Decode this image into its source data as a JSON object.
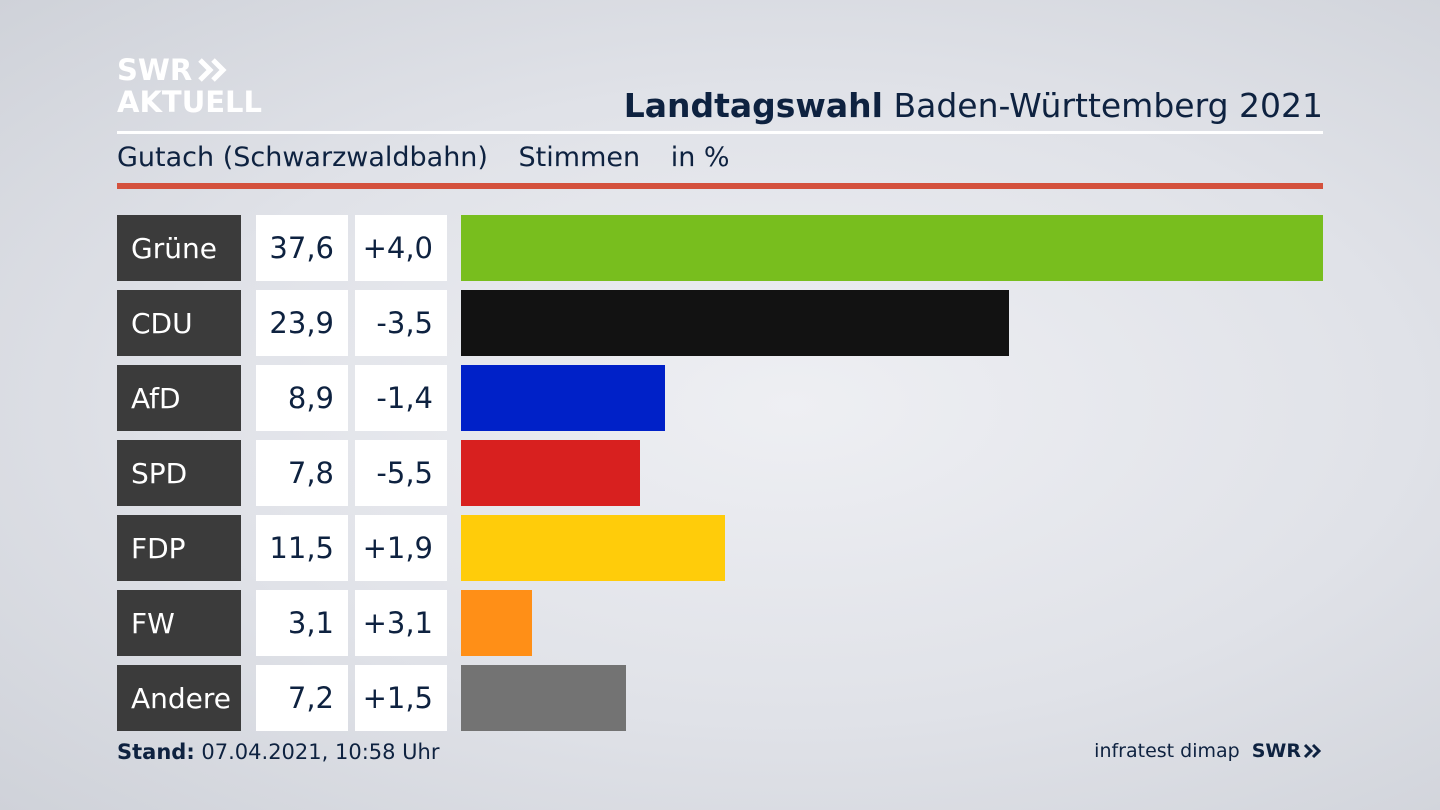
{
  "logo": {
    "line1": "SWR",
    "line2": "AKTUELL",
    "chevron_icon": "double-chevron-right-icon"
  },
  "header": {
    "title_bold": "Landtagswahl",
    "title_rest": " Baden-Württemberg 2021"
  },
  "subheader": {
    "region": "Gutach (Schwarzwaldbahn)",
    "metric": "Stimmen",
    "unit": "in %"
  },
  "colors": {
    "accent_rule": "#d4513d",
    "name_cell": "#3b3b3b"
  },
  "chart_data": {
    "type": "bar",
    "orientation": "horizontal",
    "categories": [
      "Grüne",
      "CDU",
      "AfD",
      "SPD",
      "FDP",
      "FW",
      "Andere"
    ],
    "values": [
      37.6,
      23.9,
      8.9,
      7.8,
      11.5,
      3.1,
      7.2
    ],
    "value_labels": [
      "37,6",
      "23,9",
      "8,9",
      "7,8",
      "11,5",
      "3,1",
      "7,2"
    ],
    "change_labels": [
      "+4,0",
      "-3,5",
      "-1,4",
      "-5,5",
      "+1,9",
      "+3,1",
      "+1,5"
    ],
    "changes": [
      4.0,
      -3.5,
      -1.4,
      -5.5,
      1.9,
      3.1,
      1.5
    ],
    "colors": [
      "#78be1e",
      "#121212",
      "#0021c8",
      "#d8201f",
      "#ffcc0a",
      "#ff8f17",
      "#737373"
    ],
    "xlim": [
      0,
      37.6
    ],
    "grid": false
  },
  "footer": {
    "stand_label": "Stand:",
    "stand_value": " 07.04.2021, 10:58 Uhr",
    "source": "infratest dimap",
    "brand": "SWR"
  }
}
